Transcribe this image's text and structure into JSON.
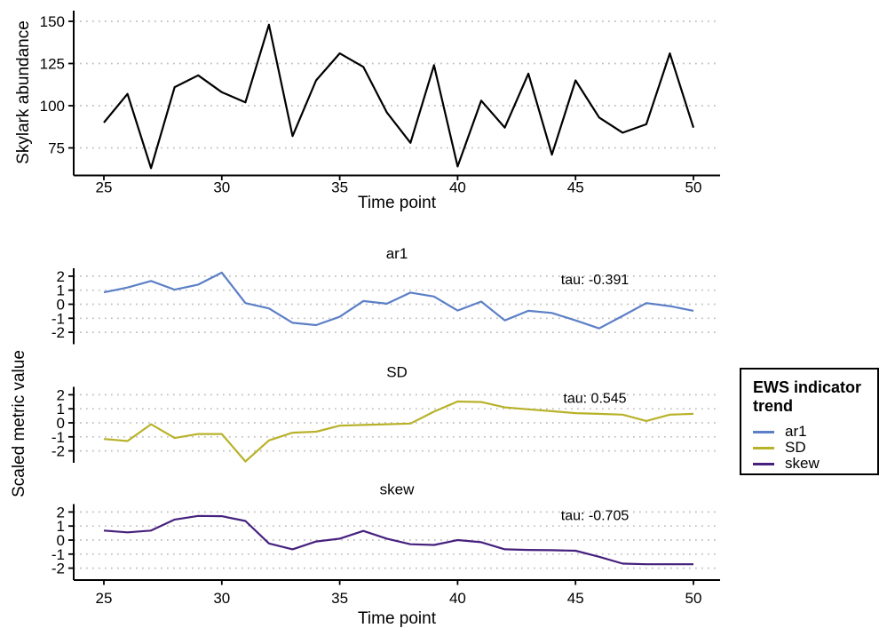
{
  "figure": {
    "background": "#ffffff",
    "text_color": "#000000",
    "grid_color": "#bdbdbd"
  },
  "labels": {
    "facet_ylabel": "Scaled metric value"
  },
  "legend": {
    "title_lines": [
      "EWS indicator",
      "trend"
    ],
    "items": [
      {
        "label": "ar1",
        "color": "#5c7fc6"
      },
      {
        "label": "SD",
        "color": "#b8b22a"
      },
      {
        "label": "skew",
        "color": "#46217e"
      }
    ]
  },
  "chart_data": [
    {
      "type": "line",
      "name": "abundance",
      "title": "",
      "xlabel": "Time point",
      "ylabel": "Skylark abundance",
      "color": "#000000",
      "x": [
        25,
        26,
        27,
        28,
        29,
        30,
        31,
        32,
        33,
        34,
        35,
        36,
        37,
        38,
        39,
        40,
        41,
        42,
        43,
        44,
        45,
        46,
        47,
        48,
        49,
        50
      ],
      "values": [
        90,
        107,
        63,
        111,
        118,
        108,
        102,
        148,
        82,
        115,
        131,
        123,
        96,
        78,
        124,
        64,
        103,
        87,
        119,
        71,
        115,
        93,
        84,
        89,
        131,
        87
      ],
      "xticks": [
        25,
        30,
        35,
        40,
        45,
        50
      ],
      "yticks": [
        75,
        100,
        125,
        150
      ],
      "ylim": [
        58.5,
        156.5
      ],
      "grid": "horizontal-dotted",
      "annotation": ""
    },
    {
      "type": "line",
      "name": "ar1",
      "title": "ar1",
      "xlabel": "",
      "ylabel": "",
      "color": "#5c7fc6",
      "x": [
        25,
        26,
        27,
        28,
        29,
        30,
        31,
        32,
        33,
        34,
        35,
        36,
        37,
        38,
        39,
        40,
        41,
        42,
        43,
        44,
        45,
        46,
        47,
        48,
        49,
        50
      ],
      "values": [
        0.85,
        1.19,
        1.66,
        1.04,
        1.4,
        2.25,
        0.08,
        -0.3,
        -1.32,
        -1.49,
        -0.89,
        0.23,
        0.04,
        0.83,
        0.55,
        -0.45,
        0.19,
        -1.15,
        -0.47,
        -0.62,
        -1.15,
        -1.72,
        -0.83,
        0.08,
        -0.13,
        -0.47
      ],
      "xticks": [
        25,
        30,
        35,
        40,
        45,
        50
      ],
      "yticks": [
        -2,
        -1,
        0,
        1,
        2
      ],
      "ylim": [
        -2.85,
        2.55
      ],
      "grid": "horizontal-dotted",
      "annotation": "tau: -0.391"
    },
    {
      "type": "line",
      "name": "SD",
      "title": "SD",
      "xlabel": "",
      "ylabel": "",
      "color": "#b8b22a",
      "x": [
        25,
        26,
        27,
        28,
        29,
        30,
        31,
        32,
        33,
        34,
        35,
        36,
        37,
        38,
        39,
        40,
        41,
        42,
        43,
        44,
        45,
        46,
        47,
        48,
        49,
        50
      ],
      "values": [
        -1.15,
        -1.3,
        -0.1,
        -1.08,
        -0.8,
        -0.8,
        -2.75,
        -1.25,
        -0.7,
        -0.63,
        -0.2,
        -0.15,
        -0.1,
        -0.05,
        0.8,
        1.52,
        1.48,
        1.1,
        0.96,
        0.83,
        0.69,
        0.64,
        0.58,
        0.13,
        0.58,
        0.64
      ],
      "xticks": [
        25,
        30,
        35,
        40,
        45,
        50
      ],
      "yticks": [
        -2,
        -1,
        0,
        1,
        2
      ],
      "ylim": [
        -2.85,
        2.55
      ],
      "grid": "horizontal-dotted",
      "annotation": "tau: 0.545"
    },
    {
      "type": "line",
      "name": "skew",
      "title": "skew",
      "xlabel": "Time point",
      "ylabel": "",
      "color": "#46217e",
      "x": [
        25,
        26,
        27,
        28,
        29,
        30,
        31,
        32,
        33,
        34,
        35,
        36,
        37,
        38,
        39,
        40,
        41,
        42,
        43,
        44,
        45,
        46,
        47,
        48,
        49,
        50
      ],
      "values": [
        0.68,
        0.55,
        0.68,
        1.46,
        1.72,
        1.7,
        1.36,
        -0.24,
        -0.66,
        -0.1,
        0.1,
        0.65,
        0.1,
        -0.3,
        -0.35,
        0.0,
        -0.15,
        -0.66,
        -0.7,
        -0.72,
        -0.76,
        -1.19,
        -1.68,
        -1.72,
        -1.72,
        -1.72
      ],
      "xticks": [
        25,
        30,
        35,
        40,
        45,
        50
      ],
      "yticks": [
        -2,
        -1,
        0,
        1,
        2
      ],
      "ylim": [
        -2.85,
        2.55
      ],
      "grid": "horizontal-dotted",
      "annotation": "tau: -0.705"
    }
  ]
}
